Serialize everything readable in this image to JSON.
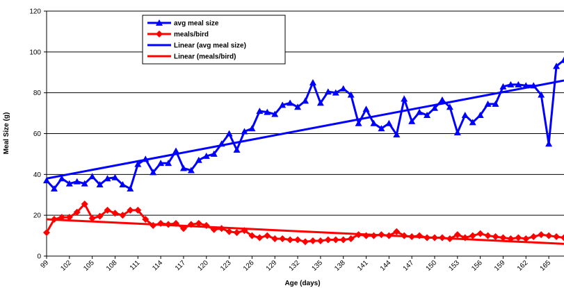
{
  "chart_data": {
    "type": "line",
    "x_label": "Age (days)",
    "y_label": "Meal Size (g)",
    "x": [
      99,
      100,
      101,
      102,
      103,
      104,
      105,
      106,
      107,
      108,
      109,
      110,
      111,
      112,
      113,
      114,
      115,
      116,
      117,
      118,
      119,
      120,
      121,
      122,
      123,
      124,
      125,
      126,
      127,
      128,
      129,
      130,
      131,
      132,
      133,
      134,
      135,
      136,
      137,
      138,
      139,
      140,
      141,
      142,
      143,
      144,
      145,
      146,
      147,
      148,
      149,
      150,
      151,
      152,
      153,
      154,
      155,
      156,
      157,
      158,
      159,
      160,
      161,
      162,
      163,
      164,
      165,
      166,
      167
    ],
    "xlim": [
      99,
      167
    ],
    "xticks": [
      99,
      102,
      105,
      108,
      111,
      114,
      117,
      120,
      123,
      126,
      129,
      132,
      135,
      138,
      141,
      144,
      147,
      150,
      153,
      156,
      159,
      162,
      165
    ],
    "ylim": [
      0,
      120
    ],
    "yticks": [
      0,
      20,
      40,
      60,
      80,
      100,
      120
    ],
    "grid": true,
    "series": [
      {
        "name": "avg meal size",
        "color": "#0000ff",
        "marker": "triangle",
        "values": [
          37,
          33,
          38,
          35.5,
          36.5,
          35.5,
          39,
          35,
          38,
          38.5,
          35,
          33,
          45,
          47.5,
          41,
          45.5,
          45.5,
          51.5,
          43,
          42,
          47,
          49,
          50,
          55,
          60,
          52,
          61,
          62.5,
          71,
          70.5,
          69.5,
          74,
          75,
          73,
          76,
          85,
          75,
          80.5,
          80,
          82,
          79,
          65,
          72,
          65,
          62.5,
          65,
          59.5,
          77,
          66,
          70.5,
          69,
          72.5,
          76.5,
          73,
          60.5,
          69,
          65.5,
          69,
          74.5,
          74.5,
          83,
          84,
          84,
          83.5,
          83.5,
          79,
          55,
          93,
          96
        ]
      },
      {
        "name": "meals/bird",
        "color": "#ff0000",
        "marker": "diamond",
        "values": [
          11.5,
          18,
          19,
          19,
          21.5,
          25.5,
          18.5,
          19.5,
          22.5,
          21,
          20,
          22.5,
          22.5,
          18,
          15,
          16,
          15.5,
          16,
          13.5,
          15.5,
          16,
          15,
          13,
          13.5,
          12,
          11.5,
          12.5,
          10,
          9,
          10,
          8.5,
          8.5,
          8,
          8,
          7,
          7.5,
          7.5,
          8,
          8,
          8,
          8.5,
          10.5,
          10,
          10,
          10.5,
          10,
          12,
          10,
          9.5,
          10,
          9,
          9,
          9,
          8.5,
          10.5,
          9,
          10,
          11,
          10,
          9.5,
          9,
          8.5,
          9,
          8.5,
          9.5,
          10.5,
          10,
          9.5,
          9
        ]
      },
      {
        "name": "Linear (avg meal size)",
        "color": "#0000ff",
        "x": [
          99,
          167
        ],
        "values": [
          38,
          86
        ]
      },
      {
        "name": "Linear (meals/bird)",
        "color": "#ff0000",
        "x": [
          99,
          167
        ],
        "values": [
          18,
          6
        ]
      }
    ]
  }
}
